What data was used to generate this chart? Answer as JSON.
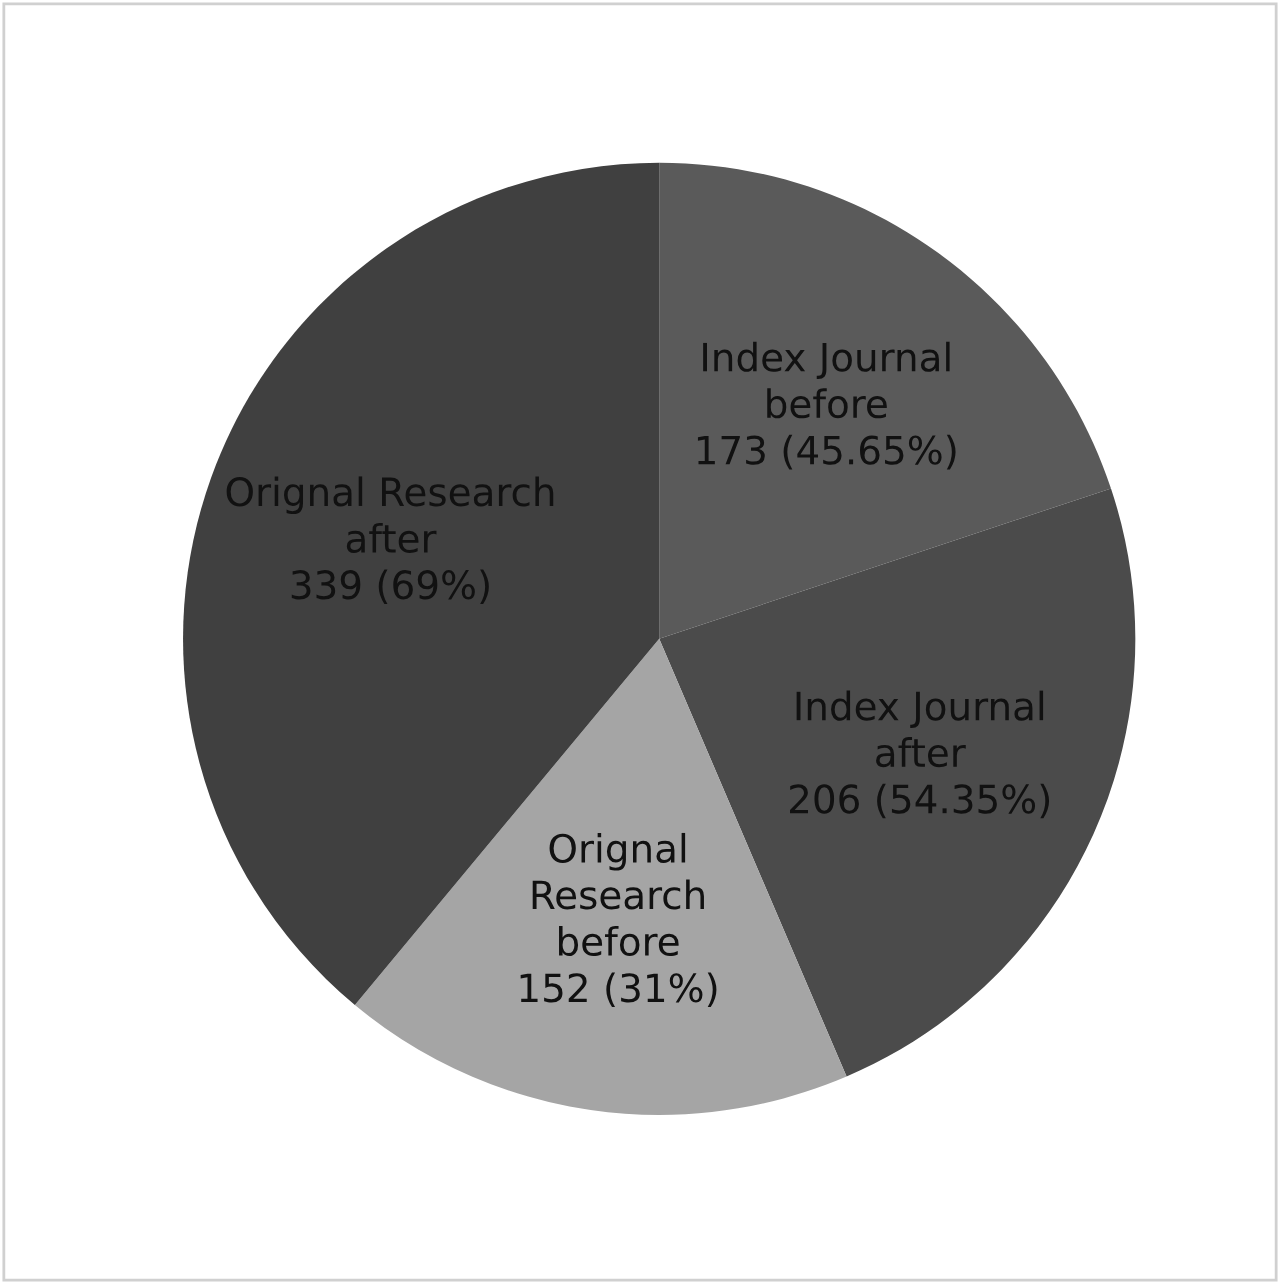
{
  "chart_data": {
    "type": "pie",
    "categories": [
      "Index Journal\nbefore",
      "Index Journal\nafter",
      "Orignal\nResearch\nbefore",
      "Orignal Research\nafter"
    ],
    "values": [
      173,
      206,
      152,
      339
    ],
    "value_labels": [
      "173 (45.65%)",
      "206 (54.35%)",
      "152 (31%)",
      "339 (69%)"
    ],
    "colors": [
      "#5a5a5a",
      "#4b4b4b",
      "#a5a5a5",
      "#404040"
    ],
    "legend": false
  }
}
